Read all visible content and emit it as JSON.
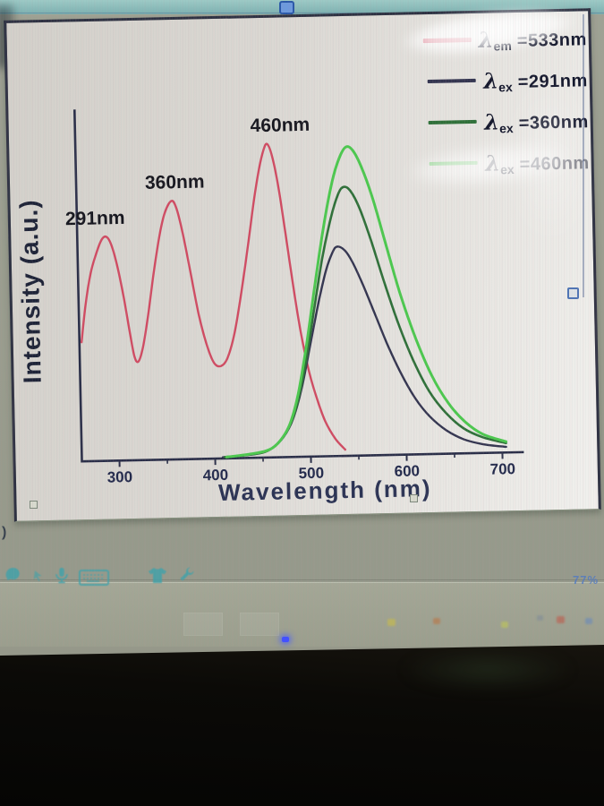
{
  "chart_data": {
    "type": "line",
    "title": "",
    "xlabel": "Wavelength (nm)",
    "ylabel": "Intensity (a.u.)",
    "xlim": [
      262,
      712
    ],
    "ylim": [
      0,
      1.05
    ],
    "grid": false,
    "legend_position": "top-right",
    "x_ticks": [
      "300",
      "400",
      "500",
      "600",
      "700"
    ],
    "x_tick_values": [
      300,
      400,
      500,
      600,
      700
    ],
    "x_minor_tick_values": [
      350,
      450,
      550,
      650
    ],
    "peak_annotations": [
      {
        "label": "291nm",
        "x": 291,
        "y": 0.715
      },
      {
        "label": "360nm",
        "x": 360,
        "y": 0.825
      },
      {
        "label": "460nm",
        "x": 460,
        "y": 1.0
      }
    ],
    "series": [
      {
        "name": "λem=533nm",
        "legend": {
          "symbol": "λ",
          "sub": "em",
          "value": "=533nm"
        },
        "role": "excitation spectrum",
        "color": "#d04b62",
        "points": [
          [
            263,
            0.38
          ],
          [
            268,
            0.5
          ],
          [
            274,
            0.6
          ],
          [
            280,
            0.66
          ],
          [
            286,
            0.705
          ],
          [
            291,
            0.715
          ],
          [
            296,
            0.69
          ],
          [
            302,
            0.62
          ],
          [
            308,
            0.52
          ],
          [
            314,
            0.4
          ],
          [
            318,
            0.33
          ],
          [
            322,
            0.315
          ],
          [
            327,
            0.36
          ],
          [
            333,
            0.46
          ],
          [
            340,
            0.6
          ],
          [
            347,
            0.72
          ],
          [
            353,
            0.79
          ],
          [
            360,
            0.825
          ],
          [
            365,
            0.8
          ],
          [
            371,
            0.72
          ],
          [
            378,
            0.6
          ],
          [
            386,
            0.46
          ],
          [
            394,
            0.36
          ],
          [
            401,
            0.305
          ],
          [
            408,
            0.295
          ],
          [
            415,
            0.32
          ],
          [
            423,
            0.4
          ],
          [
            431,
            0.53
          ],
          [
            439,
            0.68
          ],
          [
            446,
            0.82
          ],
          [
            452,
            0.92
          ],
          [
            457,
            0.98
          ],
          [
            461,
            1.0
          ],
          [
            466,
            0.96
          ],
          [
            472,
            0.86
          ],
          [
            478,
            0.72
          ],
          [
            485,
            0.55
          ],
          [
            492,
            0.4
          ],
          [
            500,
            0.27
          ],
          [
            508,
            0.18
          ],
          [
            516,
            0.11
          ],
          [
            526,
            0.055
          ],
          [
            536,
            0.02
          ]
        ]
      },
      {
        "name": "λex=291nm",
        "legend": {
          "symbol": "λ",
          "sub": "ex",
          "value": "=291nm"
        },
        "role": "emission spectrum",
        "color": "#343550",
        "points": [
          [
            408,
            0.004
          ],
          [
            430,
            0.008
          ],
          [
            448,
            0.015
          ],
          [
            460,
            0.03
          ],
          [
            472,
            0.065
          ],
          [
            482,
            0.12
          ],
          [
            492,
            0.22
          ],
          [
            502,
            0.36
          ],
          [
            512,
            0.5
          ],
          [
            520,
            0.595
          ],
          [
            527,
            0.65
          ],
          [
            532,
            0.668
          ],
          [
            540,
            0.655
          ],
          [
            548,
            0.615
          ],
          [
            558,
            0.545
          ],
          [
            570,
            0.45
          ],
          [
            582,
            0.355
          ],
          [
            595,
            0.265
          ],
          [
            610,
            0.18
          ],
          [
            625,
            0.12
          ],
          [
            642,
            0.075
          ],
          [
            660,
            0.045
          ],
          [
            680,
            0.028
          ],
          [
            704,
            0.018
          ]
        ]
      },
      {
        "name": "λex=360nm",
        "legend": {
          "symbol": "λ",
          "sub": "ex",
          "value": "=360nm"
        },
        "role": "emission spectrum",
        "color": "#2f7039",
        "points": [
          [
            410,
            0.004
          ],
          [
            434,
            0.01
          ],
          [
            452,
            0.018
          ],
          [
            464,
            0.04
          ],
          [
            476,
            0.085
          ],
          [
            486,
            0.16
          ],
          [
            496,
            0.29
          ],
          [
            506,
            0.46
          ],
          [
            516,
            0.63
          ],
          [
            526,
            0.76
          ],
          [
            534,
            0.835
          ],
          [
            540,
            0.858
          ],
          [
            547,
            0.845
          ],
          [
            556,
            0.79
          ],
          [
            567,
            0.69
          ],
          [
            580,
            0.555
          ],
          [
            594,
            0.42
          ],
          [
            609,
            0.3
          ],
          [
            625,
            0.2
          ],
          [
            642,
            0.13
          ],
          [
            660,
            0.08
          ],
          [
            680,
            0.05
          ],
          [
            704,
            0.03
          ]
        ]
      },
      {
        "name": "λex=460nm",
        "legend": {
          "symbol": "λ",
          "sub": "ex",
          "value": "=460nm"
        },
        "role": "emission spectrum",
        "color": "#4cc84e",
        "points": [
          [
            412,
            0.004
          ],
          [
            436,
            0.012
          ],
          [
            454,
            0.022
          ],
          [
            466,
            0.045
          ],
          [
            478,
            0.1
          ],
          [
            488,
            0.2
          ],
          [
            498,
            0.36
          ],
          [
            508,
            0.55
          ],
          [
            518,
            0.73
          ],
          [
            528,
            0.875
          ],
          [
            536,
            0.95
          ],
          [
            543,
            0.985
          ],
          [
            550,
            0.975
          ],
          [
            559,
            0.92
          ],
          [
            570,
            0.82
          ],
          [
            583,
            0.67
          ],
          [
            597,
            0.51
          ],
          [
            612,
            0.37
          ],
          [
            628,
            0.25
          ],
          [
            645,
            0.16
          ],
          [
            662,
            0.1
          ],
          [
            680,
            0.06
          ],
          [
            704,
            0.035
          ]
        ]
      }
    ]
  },
  "axis_style": {
    "axis_color": "#2a2e48",
    "tick_label_color": "#232a4c",
    "peak_label_color": "#16161e"
  },
  "taskbar": {
    "status_text": "77%"
  },
  "decor": {
    "stray_glyph": ")"
  },
  "ime_toolbar": {
    "icons": [
      "ime-logo",
      "cursor-arrow",
      "microphone",
      "keyboard",
      "skin-shirt",
      "wrench"
    ],
    "icon_color": "#3fa2aa"
  }
}
